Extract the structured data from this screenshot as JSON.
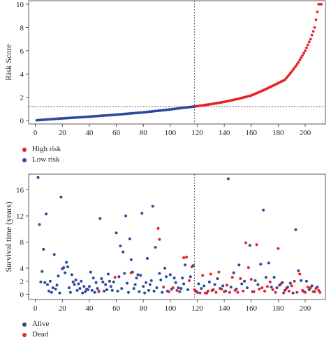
{
  "chart_data": [
    {
      "type": "scatter",
      "title": "",
      "xlabel": "",
      "ylabel": "Risk Score",
      "xlim": [
        -5,
        215
      ],
      "ylim": [
        -0.3,
        10.3
      ],
      "xticks": [
        0,
        20,
        40,
        60,
        80,
        100,
        120,
        140,
        160,
        180,
        200
      ],
      "yticks": [
        0,
        2,
        4,
        6,
        8,
        10
      ],
      "cutoff_x": 118,
      "cutoff_y": 1.2,
      "legend": {
        "placement": "bottom-left",
        "entries": [
          {
            "label": "High risk",
            "color": "#e8202a"
          },
          {
            "label": "Low risk",
            "color": "#2a4a9a"
          }
        ]
      },
      "series": [
        {
          "name": "Low risk",
          "color": "#2a4a9a",
          "x_range": [
            1,
            118
          ],
          "y_knots": [
            [
              1,
              0.02
            ],
            [
              20,
              0.18
            ],
            [
              40,
              0.33
            ],
            [
              60,
              0.5
            ],
            [
              80,
              0.7
            ],
            [
              100,
              0.95
            ],
            [
              110,
              1.1
            ],
            [
              118,
              1.2
            ]
          ]
        },
        {
          "name": "High risk",
          "color": "#e8202a",
          "x_range": [
            119,
            212
          ],
          "y_knots": [
            [
              119,
              1.22
            ],
            [
              130,
              1.4
            ],
            [
              140,
              1.6
            ],
            [
              150,
              1.85
            ],
            [
              160,
              2.15
            ],
            [
              170,
              2.65
            ],
            [
              178,
              3.1
            ],
            [
              185,
              3.5
            ],
            [
              190,
              4.2
            ],
            [
              195,
              5.0
            ],
            [
              200,
              6.0
            ],
            [
              204,
              7.0
            ],
            [
              207,
              8.0
            ],
            [
              210,
              10.0
            ],
            [
              212,
              10.0
            ]
          ]
        }
      ]
    },
    {
      "type": "scatter",
      "title": "",
      "xlabel": "",
      "ylabel": "Survival time (years)",
      "xlim": [
        -5,
        215
      ],
      "ylim": [
        -0.8,
        18.4
      ],
      "xticks": [
        0,
        20,
        40,
        60,
        80,
        100,
        120,
        140,
        160,
        180,
        200
      ],
      "yticks": [
        0,
        2,
        4,
        8,
        12,
        16
      ],
      "cutoff_x": 118,
      "legend": {
        "placement": "bottom-left",
        "entries": [
          {
            "label": "Alive",
            "color": "#2a4a9a"
          },
          {
            "label": "Dead",
            "color": "#e8202a"
          }
        ]
      },
      "series": [
        {
          "name": "Alive",
          "color": "#2a4a9a",
          "points": [
            [
              2,
              17.9
            ],
            [
              3,
              10.7
            ],
            [
              4,
              1.9
            ],
            [
              5,
              3.5
            ],
            [
              6,
              6.9
            ],
            [
              7,
              1.8
            ],
            [
              8,
              12.3
            ],
            [
              9,
              1.5
            ],
            [
              10,
              0.5
            ],
            [
              11,
              2.0
            ],
            [
              12,
              0.3
            ],
            [
              13,
              1.0
            ],
            [
              14,
              6.1
            ],
            [
              15,
              0.8
            ],
            [
              16,
              1.4
            ],
            [
              17,
              2.8
            ],
            [
              18,
              0.2
            ],
            [
              19,
              14.9
            ],
            [
              20,
              3.9
            ],
            [
              21,
              4.1
            ],
            [
              22,
              3.3
            ],
            [
              23,
              4.9
            ],
            [
              24,
              4.2
            ],
            [
              25,
              1.0
            ],
            [
              26,
              0.3
            ],
            [
              27,
              3.0
            ],
            [
              28,
              1.9
            ],
            [
              29,
              1.5
            ],
            [
              30,
              2.2
            ],
            [
              31,
              0.6
            ],
            [
              32,
              1.6
            ],
            [
              33,
              0.9
            ],
            [
              34,
              2.0
            ],
            [
              35,
              0.2
            ],
            [
              36,
              1.2
            ],
            [
              37,
              0.4
            ],
            [
              38,
              0.8
            ],
            [
              39,
              0.7
            ],
            [
              40,
              1.2
            ],
            [
              41,
              3.4
            ],
            [
              42,
              0.6
            ],
            [
              43,
              2.5
            ],
            [
              44,
              0.3
            ],
            [
              45,
              1.8
            ],
            [
              46,
              0.9
            ],
            [
              47,
              0.5
            ],
            [
              48,
              11.6
            ],
            [
              49,
              2.4
            ],
            [
              50,
              1.9
            ],
            [
              51,
              0.5
            ],
            [
              52,
              1.5
            ],
            [
              53,
              0.7
            ],
            [
              54,
              3.1
            ],
            [
              55,
              2.0
            ],
            [
              56,
              1.2
            ],
            [
              57,
              0.6
            ],
            [
              58,
              1.9
            ],
            [
              60,
              9.4
            ],
            [
              61,
              0.5
            ],
            [
              62,
              2.7
            ],
            [
              63,
              7.4
            ],
            [
              64,
              0.9
            ],
            [
              65,
              6.5
            ],
            [
              66,
              3.2
            ],
            [
              67,
              12.0
            ],
            [
              68,
              1.7
            ],
            [
              69,
              0.3
            ],
            [
              70,
              8.5
            ],
            [
              71,
              5.3
            ],
            [
              72,
              3.4
            ],
            [
              73,
              0.9
            ],
            [
              74,
              1.5
            ],
            [
              75,
              2.5
            ],
            [
              76,
              3.0
            ],
            [
              77,
              0.4
            ],
            [
              78,
              2.9
            ],
            [
              79,
              12.4
            ],
            [
              80,
              1.2
            ],
            [
              81,
              0.2
            ],
            [
              82,
              1.8
            ],
            [
              83,
              5.5
            ],
            [
              84,
              0.6
            ],
            [
              85,
              1.5
            ],
            [
              86,
              2.1
            ],
            [
              87,
              13.5
            ],
            [
              88,
              0.5
            ],
            [
              89,
              7.2
            ],
            [
              90,
              1.0
            ],
            [
              92,
              3.2
            ],
            [
              93,
              2.2
            ],
            [
              94,
              0.3
            ],
            [
              96,
              4.0
            ],
            [
              97,
              2.7
            ],
            [
              98,
              0.5
            ],
            [
              100,
              3.0
            ],
            [
              101,
              0.8
            ],
            [
              103,
              2.5
            ],
            [
              104,
              1.8
            ],
            [
              106,
              1.0
            ],
            [
              107,
              0.4
            ],
            [
              108,
              0.9
            ],
            [
              109,
              2.5
            ],
            [
              110,
              1.6
            ],
            [
              111,
              4.5
            ],
            [
              113,
              0.7
            ],
            [
              115,
              2.7
            ],
            [
              117,
              4.4
            ],
            [
              120,
              0.3
            ],
            [
              121,
              1.6
            ],
            [
              123,
              0.9
            ],
            [
              125,
              1.3
            ],
            [
              127,
              0.2
            ],
            [
              129,
              1.9
            ],
            [
              131,
              0.6
            ],
            [
              133,
              1.5
            ],
            [
              135,
              2.4
            ],
            [
              137,
              0.9
            ],
            [
              139,
              1.3
            ],
            [
              141,
              0.5
            ],
            [
              143,
              17.7
            ],
            [
              145,
              1.1
            ],
            [
              147,
              3.3
            ],
            [
              149,
              0.8
            ],
            [
              151,
              4.5
            ],
            [
              153,
              1.6
            ],
            [
              155,
              2.0
            ],
            [
              157,
              1.0
            ],
            [
              159,
              7.5
            ],
            [
              161,
              0.4
            ],
            [
              163,
              2.1
            ],
            [
              165,
              1.5
            ],
            [
              167,
              4.6
            ],
            [
              169,
              12.9
            ],
            [
              171,
              2.6
            ],
            [
              173,
              4.8
            ],
            [
              175,
              1.1
            ],
            [
              177,
              2.6
            ],
            [
              179,
              1.0
            ],
            [
              181,
              1.4
            ],
            [
              183,
              1.8
            ],
            [
              185,
              0.6
            ],
            [
              187,
              1.1
            ],
            [
              189,
              1.7
            ],
            [
              191,
              0.2
            ],
            [
              193,
              9.9
            ],
            [
              195,
              3.6
            ],
            [
              197,
              2.1
            ],
            [
              199,
              0.4
            ],
            [
              201,
              2.0
            ],
            [
              203,
              0.7
            ],
            [
              205,
              1.3
            ],
            [
              207,
              0.4
            ],
            [
              209,
              1.1
            ]
          ]
        },
        {
          "name": "Dead",
          "color": "#e8202a",
          "points": [
            [
              47,
              0.4
            ],
            [
              59,
              2.6
            ],
            [
              71,
              3.3
            ],
            [
              91,
              10.1
            ],
            [
              92,
              8.4
            ],
            [
              95,
              1.1
            ],
            [
              99,
              0.4
            ],
            [
              102,
              1.0
            ],
            [
              105,
              0.6
            ],
            [
              110,
              5.6
            ],
            [
              112,
              5.7
            ],
            [
              114,
              2.1
            ],
            [
              116,
              4.2
            ],
            [
              118,
              0.7
            ],
            [
              119,
              0.5
            ],
            [
              122,
              0.2
            ],
            [
              124,
              2.9
            ],
            [
              126,
              0.2
            ],
            [
              128,
              0.5
            ],
            [
              130,
              3.1
            ],
            [
              132,
              0.7
            ],
            [
              134,
              0.3
            ],
            [
              136,
              3.4
            ],
            [
              138,
              0.8
            ],
            [
              140,
              0.4
            ],
            [
              142,
              1.4
            ],
            [
              144,
              0.3
            ],
            [
              146,
              2.6
            ],
            [
              148,
              0.6
            ],
            [
              150,
              0.3
            ],
            [
              152,
              2.4
            ],
            [
              154,
              0.5
            ],
            [
              156,
              7.9
            ],
            [
              158,
              4.1
            ],
            [
              160,
              2.3
            ],
            [
              162,
              0.4
            ],
            [
              164,
              7.6
            ],
            [
              166,
              0.8
            ],
            [
              168,
              1.0
            ],
            [
              170,
              0.5
            ],
            [
              172,
              1.2
            ],
            [
              174,
              1.9
            ],
            [
              176,
              0.7
            ],
            [
              178,
              0.3
            ],
            [
              180,
              7.0
            ],
            [
              182,
              1.6
            ],
            [
              184,
              0.2
            ],
            [
              186,
              0.9
            ],
            [
              188,
              0.5
            ],
            [
              190,
              1.3
            ],
            [
              192,
              2.0
            ],
            [
              194,
              0.3
            ],
            [
              196,
              3.1
            ],
            [
              198,
              0.6
            ],
            [
              200,
              0.3
            ],
            [
              202,
              1.1
            ],
            [
              204,
              1.0
            ],
            [
              206,
              0.4
            ],
            [
              208,
              0.9
            ],
            [
              210,
              0.6
            ],
            [
              211,
              0.3
            ]
          ]
        }
      ]
    }
  ]
}
